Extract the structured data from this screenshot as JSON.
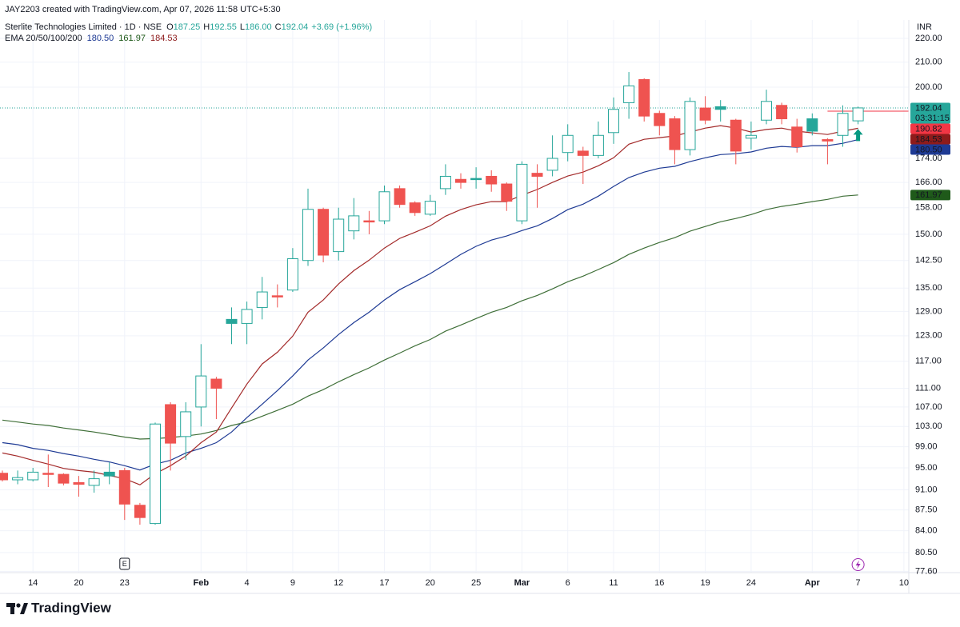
{
  "chart_data": {
    "type": "candlestick",
    "credit": "JAY2203 created with TradingView.com, Apr 07, 2026 11:58 UTC+5:30",
    "title": "Sterlite Technologies Limited · 1D · NSE",
    "ohlc": [
      {
        "key": "O",
        "value": "187.25"
      },
      {
        "key": "H",
        "value": "192.55"
      },
      {
        "key": "L",
        "value": "186.00"
      },
      {
        "key": "C",
        "value": "192.04"
      }
    ],
    "change": "+3.69 (+1.96%)",
    "indicator": "EMA 20/50/100/200",
    "currency": "INR",
    "earnings_marker": "E",
    "brand": "TradingView",
    "log_scale": true,
    "grid": true,
    "ylim": [
      77.4,
      227
    ],
    "yticks": [
      {
        "value": 77.6,
        "label": "77.60"
      },
      {
        "value": 80.5,
        "label": "80.50"
      },
      {
        "value": 84,
        "label": "84.00"
      },
      {
        "value": 87.5,
        "label": "87.50"
      },
      {
        "value": 91,
        "label": "91.00"
      },
      {
        "value": 95,
        "label": "95.00"
      },
      {
        "value": 99,
        "label": "99.00"
      },
      {
        "value": 103,
        "label": "103.00"
      },
      {
        "value": 107,
        "label": "107.00"
      },
      {
        "value": 111,
        "label": "111.00"
      },
      {
        "value": 117,
        "label": "117.00"
      },
      {
        "value": 123,
        "label": "123.00"
      },
      {
        "value": 129,
        "label": "129.00"
      },
      {
        "value": 135,
        "label": "135.00"
      },
      {
        "value": 142.5,
        "label": "142.50"
      },
      {
        "value": 150,
        "label": "150.00"
      },
      {
        "value": 158,
        "label": "158.00"
      },
      {
        "value": 166,
        "label": "166.00"
      },
      {
        "value": 174,
        "label": "174.00"
      },
      {
        "value": 200,
        "label": "200.00"
      },
      {
        "value": 210,
        "label": "210.00"
      },
      {
        "value": 220,
        "label": "220.00"
      }
    ],
    "categories": [
      null,
      null,
      "14",
      null,
      null,
      "20",
      null,
      null,
      "23",
      null,
      null,
      null,
      null,
      "Feb",
      null,
      null,
      "4",
      null,
      null,
      "9",
      null,
      null,
      "12",
      null,
      null,
      "17",
      null,
      null,
      "20",
      null,
      null,
      "25",
      null,
      null,
      "Mar",
      null,
      null,
      "6",
      null,
      null,
      "11",
      null,
      null,
      "16",
      null,
      null,
      "19",
      null,
      null,
      "24",
      null,
      null,
      null,
      "Apr",
      null,
      null,
      "7",
      null,
      null,
      "10"
    ],
    "candles": {
      "up_color": "#26a69a",
      "down_color": "#ef5350",
      "price_label": "192.04",
      "countdown": "03:31:15",
      "open": [
        94,
        92.8,
        92.8,
        94,
        93.8,
        92.3,
        91.8,
        94.2,
        94.5,
        88.3,
        85.2,
        107.5,
        101,
        107,
        113,
        127,
        126,
        130,
        133,
        134.5,
        142.5,
        157.5,
        145,
        151,
        154,
        154,
        164,
        159.5,
        156,
        164,
        167,
        167.3,
        168,
        165.5,
        154,
        169,
        170,
        176,
        176.5,
        175,
        183,
        194,
        203,
        190,
        188,
        177,
        192,
        192.5,
        187.5,
        181,
        187.5,
        193,
        185,
        188,
        180.5,
        182,
        187.25,
        null,
        null,
        null
      ],
      "high": [
        94.5,
        94.5,
        95,
        97.5,
        94,
        93.5,
        94.5,
        96,
        95,
        88.7,
        103.8,
        108,
        108,
        121,
        113.5,
        130,
        131.5,
        138,
        136,
        146,
        164,
        158,
        158,
        161,
        157,
        165,
        165,
        160,
        162,
        172,
        169,
        171,
        170,
        166,
        173,
        172,
        182,
        186,
        178,
        187,
        196,
        206,
        203.5,
        191,
        189,
        196,
        196.5,
        195,
        188,
        187,
        199,
        194,
        188,
        190,
        181,
        193,
        192.55,
        null,
        null,
        null
      ],
      "low": [
        92.5,
        92,
        92.5,
        91.5,
        91.8,
        89.8,
        90.5,
        92,
        85.8,
        85,
        85,
        94.5,
        96.5,
        103,
        104.5,
        121,
        121,
        127,
        130,
        134,
        141,
        142,
        142.5,
        148.5,
        150,
        153,
        158,
        155.5,
        155.5,
        162,
        164,
        164,
        163,
        157,
        153,
        158,
        168,
        173,
        165.5,
        174,
        179,
        188,
        187,
        182,
        172,
        175,
        186,
        187,
        172,
        177,
        186,
        186,
        176,
        182,
        172,
        178,
        186,
        null,
        null,
        null
      ],
      "close": [
        92.8,
        93.2,
        94.2,
        93.8,
        92.2,
        92,
        93,
        93.5,
        88.5,
        86.2,
        103.5,
        99.7,
        106,
        113.7,
        111,
        126,
        129.5,
        134,
        132.8,
        143,
        157.5,
        144,
        154.5,
        155.5,
        153.8,
        163,
        159,
        156.5,
        160,
        168,
        166,
        167,
        165.5,
        160,
        172,
        168,
        174,
        182,
        175,
        182,
        191.5,
        200.5,
        189,
        185.5,
        177,
        194.5,
        187.5,
        191.5,
        176.5,
        182,
        194.5,
        188,
        178,
        183.5,
        180,
        190,
        192.04,
        null,
        null,
        null
      ]
    },
    "hline": {
      "value": 190.82,
      "label": "190.82",
      "color": "#f23645"
    },
    "series": [
      {
        "color": "#1e3a94",
        "label_color": "#1e3a94",
        "price_label": "180.50",
        "values": [
          99.8,
          99.4,
          98.7,
          98.3,
          97.7,
          97.2,
          96.6,
          96.1,
          95.4,
          94.6,
          95.7,
          96.4,
          97.8,
          98.7,
          99.8,
          101.9,
          104.8,
          107.6,
          110.5,
          113.7,
          117.3,
          120.1,
          123.3,
          126.2,
          128.8,
          131.9,
          134.6,
          136.7,
          138.9,
          141.5,
          144.2,
          146.5,
          148.3,
          149.5,
          151.1,
          152.5,
          154.7,
          157.4,
          159.1,
          161.6,
          164.7,
          167.6,
          169.4,
          170.7,
          171.3,
          172.9,
          174.2,
          175.3,
          175.6,
          176.2,
          177.5,
          178.1,
          177.8,
          178.4,
          178.4,
          179.2,
          180.5,
          null,
          null,
          null
        ]
      },
      {
        "color": "#3f6f38",
        "label_color": "#1f5a1a",
        "price_label": "161.97",
        "values": [
          104.3,
          103.9,
          103.5,
          103.2,
          102.7,
          102.3,
          101.9,
          101.4,
          100.9,
          100.5,
          100.6,
          100.8,
          101.1,
          101.5,
          102.2,
          103.2,
          103.9,
          105.1,
          106.3,
          107.6,
          109.3,
          110.7,
          112.4,
          114.0,
          115.5,
          117.3,
          118.9,
          120.6,
          122.1,
          124.1,
          125.6,
          127.2,
          128.8,
          130.0,
          131.7,
          133.1,
          134.8,
          136.7,
          138.2,
          140.0,
          141.9,
          144.2,
          146.0,
          147.6,
          149.0,
          150.9,
          152.3,
          153.7,
          154.7,
          155.9,
          157.4,
          158.4,
          159.1,
          159.9,
          160.6,
          161.6,
          161.97,
          null,
          null,
          null
        ]
      },
      {
        "color": "#a32a2a",
        "label_color": "#8e1b1b",
        "price_label": "184.53",
        "values": [
          97.8,
          97.2,
          96.4,
          95.7,
          94.9,
          94.5,
          94.2,
          93.6,
          93.0,
          91.9,
          93.9,
          95.4,
          97.2,
          99.8,
          101.9,
          106.8,
          111.9,
          116.4,
          119.1,
          122.9,
          128.8,
          131.9,
          136.1,
          139.7,
          142.6,
          146.0,
          148.8,
          150.6,
          152.5,
          155.4,
          157.4,
          158.9,
          159.9,
          159.9,
          161.9,
          163.7,
          166.0,
          168.1,
          169.4,
          171.5,
          174.2,
          178.9,
          180.6,
          181.2,
          181.8,
          183.2,
          184.6,
          185.5,
          184.6,
          183.2,
          184.1,
          184.6,
          183.5,
          182.9,
          182.3,
          183.5,
          184.53,
          null,
          null,
          null
        ]
      }
    ]
  }
}
